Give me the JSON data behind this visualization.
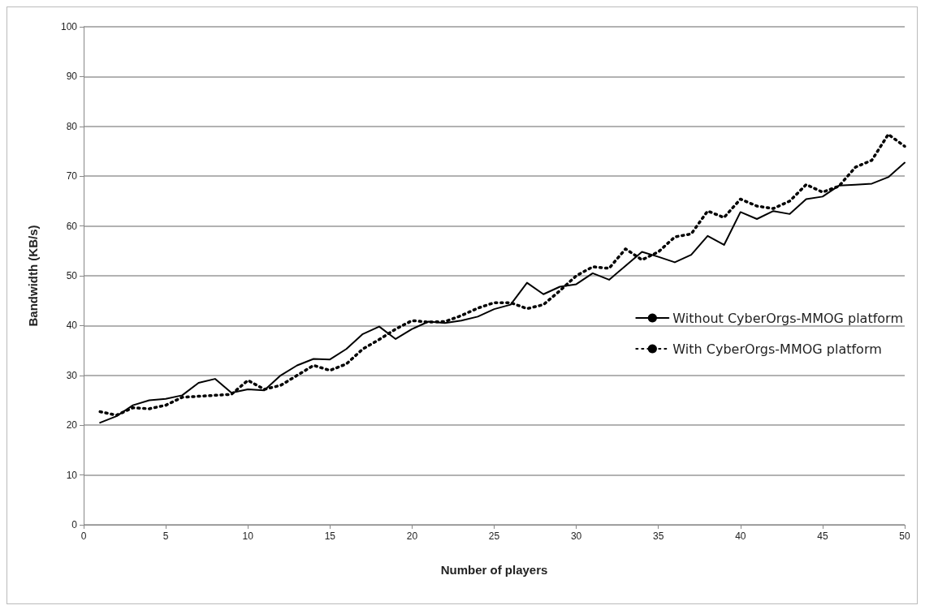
{
  "chart_data": {
    "type": "line",
    "xlabel": "Number of players",
    "ylabel": "Bandwidth (KB/s)",
    "x": [
      1,
      2,
      3,
      4,
      5,
      6,
      7,
      8,
      9,
      10,
      11,
      12,
      13,
      14,
      15,
      16,
      17,
      18,
      19,
      20,
      21,
      22,
      23,
      24,
      25,
      26,
      27,
      28,
      29,
      30,
      31,
      32,
      33,
      34,
      35,
      36,
      37,
      38,
      39,
      40,
      41,
      42,
      43,
      44,
      45,
      46,
      47,
      48,
      49,
      50
    ],
    "xlim": [
      0,
      50
    ],
    "xticks": [
      0,
      5,
      10,
      15,
      20,
      25,
      30,
      35,
      40,
      45,
      50
    ],
    "ylim": [
      0,
      100
    ],
    "yticks": [
      0,
      10,
      20,
      30,
      40,
      50,
      60,
      70,
      80,
      90,
      100
    ],
    "grid": "y",
    "legend": "right",
    "marker": "none",
    "series": [
      {
        "name": "Without CyberOrgs-MMOG platform",
        "color": "#000000",
        "line_style": "solid",
        "values": [
          20.5,
          21.8,
          24,
          25,
          25.3,
          26,
          28.5,
          29.3,
          26.5,
          27.2,
          27,
          30,
          32,
          33.3,
          33.2,
          35.3,
          38.3,
          39.8,
          37.3,
          39.3,
          40.8,
          40.5,
          41,
          41.8,
          43.3,
          44.2,
          48.6,
          46.3,
          47.8,
          48.3,
          50.5,
          49.2,
          52,
          54.8,
          53.8,
          52.7,
          54.2,
          58,
          56.2,
          62.8,
          61.4,
          63,
          62.4,
          65.4,
          65.9,
          68.1,
          68.3,
          68.5,
          69.8,
          72.7
        ]
      },
      {
        "name": "With CyberOrgs-MMOG platform",
        "color": "#000000",
        "line_style": "dotted",
        "values": [
          22.7,
          22,
          23.5,
          23.3,
          24,
          25.6,
          25.8,
          26,
          26.2,
          29,
          27.2,
          28,
          30,
          32,
          31,
          32.3,
          35.3,
          37.2,
          39.3,
          41,
          40.7,
          40.8,
          42,
          43.5,
          44.6,
          44.6,
          43.4,
          44.2,
          47,
          50,
          51.8,
          51.5,
          55.4,
          53.2,
          54.8,
          57.8,
          58.4,
          63,
          61.7,
          65.4,
          64,
          63.5,
          65,
          68.3,
          66.8,
          68,
          71.8,
          73.2,
          78.4,
          76
        ]
      }
    ]
  }
}
